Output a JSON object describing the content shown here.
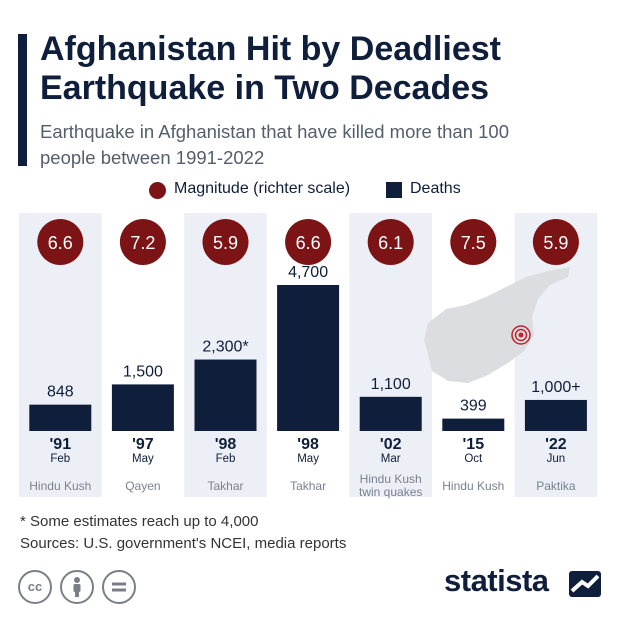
{
  "header": {
    "title": "Afghanistan Hit by Deadliest Earthquake in Two Decades",
    "subtitle": "Earthquake in Afghanistan that have killed more than 100 people between 1991-2022"
  },
  "legend": {
    "magnitude_label": "Magnitude (richter scale)",
    "deaths_label": "Deaths"
  },
  "colors": {
    "magnitude": "#7c1416",
    "deaths": "#0f1e3a",
    "column_bg": "#eceff6",
    "map": "#dcdde0",
    "epicenter": "#c0232d"
  },
  "chart_data": {
    "type": "bar",
    "series_name": "Deaths",
    "ylim": [
      0,
      4700
    ],
    "categories": [
      {
        "year": "'91",
        "month": "Feb",
        "location": "Hindu Kush",
        "magnitude": 6.6,
        "deaths": 848,
        "deaths_label": "848"
      },
      {
        "year": "'97",
        "month": "May",
        "location": "Qayen",
        "magnitude": 7.2,
        "deaths": 1500,
        "deaths_label": "1,500"
      },
      {
        "year": "'98",
        "month": "Feb",
        "location": "Takhar",
        "magnitude": 5.9,
        "deaths": 2300,
        "deaths_label": "2,300*"
      },
      {
        "year": "'98",
        "month": "May",
        "location": "Takhar",
        "magnitude": 6.6,
        "deaths": 4700,
        "deaths_label": "4,700"
      },
      {
        "year": "'02",
        "month": "Mar",
        "location": "Hindu Kush twin quakes",
        "magnitude": 6.1,
        "deaths": 1100,
        "deaths_label": "1,100"
      },
      {
        "year": "'15",
        "month": "Oct",
        "location": "Hindu Kush",
        "magnitude": 7.5,
        "deaths": 399,
        "deaths_label": "399"
      },
      {
        "year": "'22",
        "month": "Jun",
        "location": "Paktika",
        "magnitude": 5.9,
        "deaths": 1000,
        "deaths_label": "1,000+"
      }
    ]
  },
  "footer": {
    "footnote": "* Some estimates reach up to 4,000",
    "sources": "Sources: U.S. government's NCEI, media reports",
    "cc_icons": [
      "cc-icon",
      "by-icon",
      "nd-icon"
    ],
    "brand": "statista"
  }
}
